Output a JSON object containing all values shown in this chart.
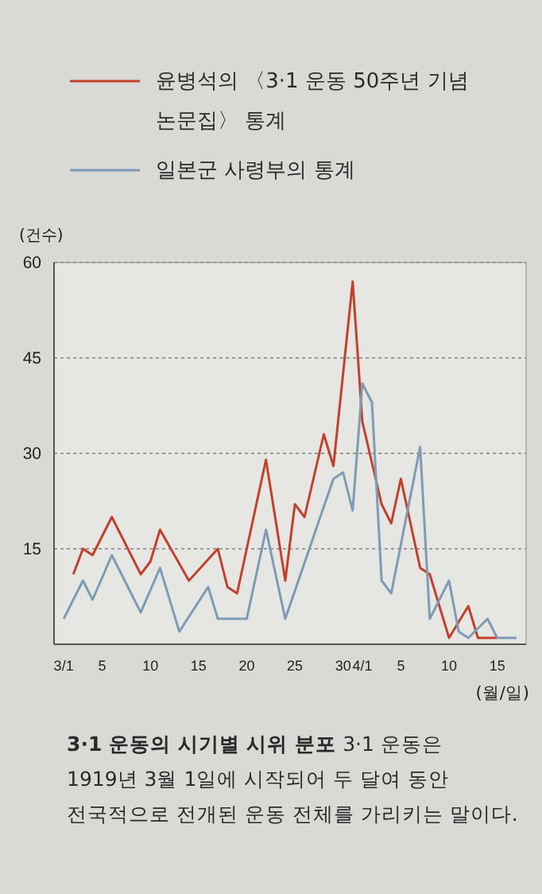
{
  "chart_data": {
    "type": "line",
    "title": "3·1 운동의 시기별 시위 분포",
    "annotations": [
      "3·1 운동은 1919년 3월 1일에 시작되어 두 달여 동안 전국적으로 전개된 운동 전체를 가리키는 말이다."
    ],
    "ylabel": "(건수)",
    "xlabel": "(월/일)",
    "series": [
      {
        "name": "윤병석의 〈3·1 운동 50주년 기념 논문집〉 통계",
        "color": "#c2412d",
        "x": [
          "--03-02",
          "--03-03",
          "--03-04",
          "--03-06",
          "--03-09",
          "--03-10",
          "--03-11",
          "--03-14",
          "--03-17",
          "--03-18",
          "--03-19",
          "--03-22",
          "--03-24",
          "--03-25",
          "--03-26",
          "--03-28",
          "--03-29",
          "--03-31",
          "--04-01",
          "--04-03",
          "--04-04",
          "--04-05",
          "--04-07",
          "--04-08",
          "--04-09",
          "--04-10",
          "--04-12",
          "--04-13",
          "--04-15"
        ],
        "values": [
          11,
          15,
          14,
          20,
          11,
          13,
          18,
          10,
          15,
          9,
          8,
          29,
          10,
          22,
          20,
          33,
          28,
          57,
          35,
          22,
          19,
          26,
          12,
          11,
          6,
          1,
          6,
          1,
          1
        ]
      },
      {
        "name": "일본군 사령부의 통계",
        "color": "#7e9bb5",
        "x": [
          "--03-01",
          "--03-03",
          "--03-04",
          "--03-06",
          "--03-09",
          "--03-11",
          "--03-13",
          "--03-16",
          "--03-17",
          "--03-20",
          "--03-22",
          "--03-24",
          "--03-29",
          "--03-30",
          "--03-31",
          "--04-01",
          "--04-02",
          "--04-03",
          "--04-04",
          "--04-07",
          "--04-08",
          "--04-10",
          "--04-11",
          "--04-12",
          "--04-14",
          "--04-15",
          "--04-17"
        ],
        "values": [
          4,
          10,
          7,
          14,
          5,
          12,
          2,
          9,
          4,
          4,
          18,
          4,
          26,
          27,
          21,
          41,
          38,
          10,
          8,
          31,
          4,
          10,
          2,
          1,
          4,
          1,
          1
        ]
      }
    ],
    "xlim": [
      "--02-28",
      "--04-18"
    ],
    "xticks": [
      {
        "value": "--03-01",
        "label": "3/1"
      },
      {
        "value": "--03-05",
        "label": "5"
      },
      {
        "value": "--03-10",
        "label": "10"
      },
      {
        "value": "--03-15",
        "label": "15"
      },
      {
        "value": "--03-20",
        "label": "20"
      },
      {
        "value": "--03-25",
        "label": "25"
      },
      {
        "value": "--03-30",
        "label": "30"
      },
      {
        "value": "--04-01",
        "label": "4/1"
      },
      {
        "value": "--04-05",
        "label": "5"
      },
      {
        "value": "--04-10",
        "label": "10"
      },
      {
        "value": "--04-15",
        "label": "15"
      }
    ],
    "ylim": [
      0,
      60
    ],
    "yticks": [
      15,
      30,
      45,
      60
    ],
    "grid": "y",
    "legend": "top",
    "marker": "none",
    "line_style": "solid"
  }
}
